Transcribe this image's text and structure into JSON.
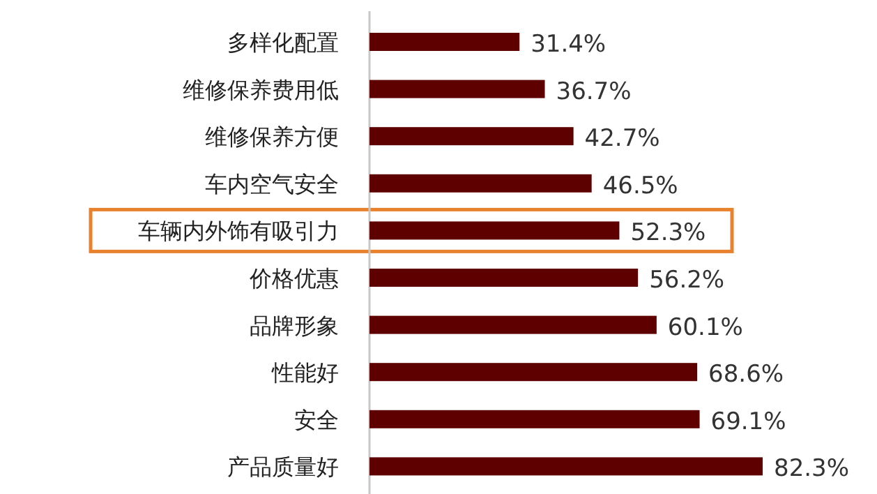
{
  "chart_data": {
    "type": "bar",
    "orientation": "horizontal",
    "categories": [
      "多样化配置",
      "维修保养费用低",
      "维修保养方便",
      "车内空气安全",
      "车辆内外饰有吸引力",
      "价格优惠",
      "品牌形象",
      "性能好",
      "安全",
      "产品质量好"
    ],
    "values": [
      31.4,
      36.7,
      42.7,
      46.5,
      52.3,
      56.2,
      60.1,
      68.6,
      69.1,
      82.3
    ],
    "value_labels": [
      "31.4%",
      "36.7%",
      "42.7%",
      "46.5%",
      "52.3%",
      "56.2%",
      "60.1%",
      "68.6%",
      "69.1%",
      "82.3%"
    ],
    "color": "#5e0000"
  }
}
